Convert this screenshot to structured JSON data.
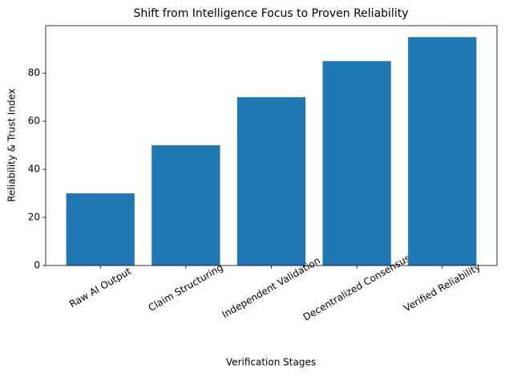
{
  "chart_data": {
    "type": "bar",
    "title": "Shift from Intelligence Focus to Proven Reliability",
    "x_label": "Verification Stages",
    "y_label": "Reliability & Trust Index",
    "categories": [
      "Raw AI Output",
      "Claim Structuring",
      "Independent Validation",
      "Decentralized Consensus",
      "Verified Reliability"
    ],
    "values": [
      30,
      50,
      70,
      85,
      95
    ],
    "color": "#1f77b4",
    "ylim": [
      0,
      99.75
    ],
    "yticks": [
      0,
      20,
      40,
      60,
      80
    ],
    "grid": false
  }
}
